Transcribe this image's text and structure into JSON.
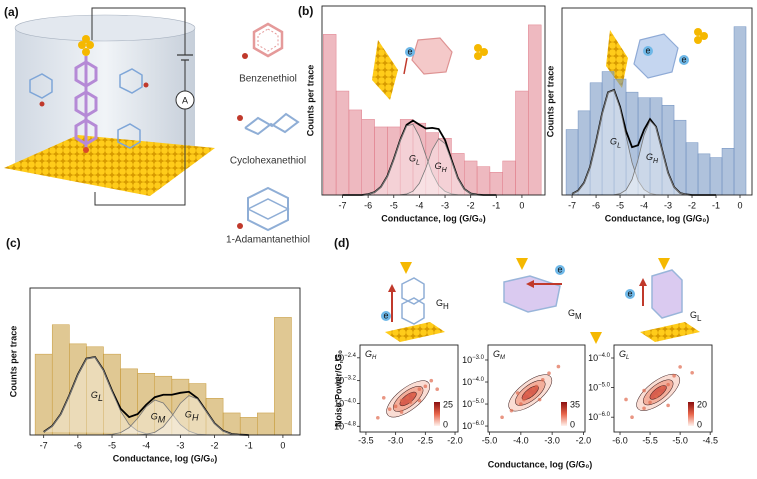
{
  "figure": {
    "panel_labels": [
      "(a)",
      "(b)",
      "(c)",
      "(d)"
    ],
    "ammeter": "A",
    "molecules": [
      "Benzenethiol",
      "Cyclohexanethiol",
      "1-Adamantanethiol"
    ],
    "d_states": [
      {
        "text": "G",
        "sub": "H"
      },
      {
        "text": "G",
        "sub": "M"
      },
      {
        "text": "G",
        "sub": "L"
      }
    ],
    "electron": "e"
  },
  "chart_data": [
    {
      "type": "histogram",
      "xlabel": "Conductance, log (G/G₀)",
      "ylabel": "Counts per trace",
      "xlim": [
        -7.8,
        0.9
      ],
      "xticks": [
        -7,
        -6,
        -5,
        -4,
        -3,
        -2,
        -1,
        0
      ],
      "ylim": [
        0,
        1
      ],
      "color": "#e07f8c",
      "bins": [
        -7.75,
        -7.25,
        -6.75,
        -6.25,
        -5.75,
        -5.25,
        -4.75,
        -4.25,
        -3.75,
        -3.25,
        -2.75,
        -2.25,
        -1.75,
        -1.25,
        -0.75,
        -0.25,
        0.25,
        0.75
      ],
      "values": [
        0.85,
        0.55,
        0.45,
        0.4,
        0.36,
        0.36,
        0.4,
        0.38,
        0.33,
        0.3,
        0.22,
        0.18,
        0.15,
        0.12,
        0.18,
        0.55,
        0.9
      ],
      "fit_x": [
        -7,
        -6.75,
        -6.5,
        -6.25,
        -6,
        -5.75,
        -5.5,
        -5.25,
        -5,
        -4.75,
        -4.5,
        -4.25,
        -4,
        -3.75,
        -3.5,
        -3.25,
        -3,
        -2.75,
        -2.5,
        -2.25,
        -2,
        -1.75,
        -1.5,
        -1.25,
        -1
      ],
      "fits": [
        {
          "color": "#000000",
          "values": [
            0,
            0,
            0,
            0,
            0.004,
            0.015,
            0.043,
            0.1,
            0.19,
            0.291,
            0.371,
            0.394,
            0.372,
            0.352,
            0.355,
            0.349,
            0.291,
            0.188,
            0.09,
            0.032,
            0.008,
            0.002,
            0,
            0,
            0
          ]
        },
        {
          "color": "#777777",
          "label": "G",
          "sub": "L",
          "values": [
            0,
            0,
            0,
            0,
            0.004,
            0.015,
            0.043,
            0.1,
            0.19,
            0.29,
            0.366,
            0.374,
            0.31,
            0.21,
            0.115,
            0.051,
            0.019,
            0.006,
            0.001,
            0,
            0,
            0,
            0,
            0,
            0
          ]
        },
        {
          "color": "#777777",
          "label": "G",
          "sub": "H",
          "values": [
            0,
            0,
            0,
            0,
            0,
            0,
            0,
            0,
            0,
            0.001,
            0.005,
            0.02,
            0.062,
            0.142,
            0.24,
            0.298,
            0.272,
            0.182,
            0.089,
            0.032,
            0.008,
            0.002,
            0,
            0,
            0
          ]
        }
      ]
    },
    {
      "type": "histogram",
      "xlabel": "Conductance, log (G/G₀)",
      "ylabel": "Counts per trace",
      "xlim": [
        -7.42,
        0.5
      ],
      "xticks": [
        -7,
        -6,
        -5,
        -4,
        -3,
        -2,
        -1,
        0
      ],
      "ylim": [
        0,
        1
      ],
      "color": "#6e8fbf",
      "bins": [
        -7.25,
        -6.75,
        -6.25,
        -5.75,
        -5.25,
        -4.75,
        -4.25,
        -3.75,
        -3.25,
        -2.75,
        -2.25,
        -1.75,
        -1.25,
        -0.75,
        -0.25,
        0.25
      ],
      "values": [
        0.35,
        0.45,
        0.6,
        0.66,
        0.62,
        0.55,
        0.52,
        0.52,
        0.48,
        0.4,
        0.28,
        0.22,
        0.2,
        0.25,
        0.9
      ],
      "fit_x": [
        -7,
        -6.75,
        -6.5,
        -6.25,
        -6,
        -5.75,
        -5.5,
        -5.25,
        -5,
        -4.75,
        -4.5,
        -4.25,
        -4,
        -3.75,
        -3.5,
        -3.25,
        -3,
        -2.75,
        -2.5,
        -2.25,
        -2,
        -1.75,
        -1.5,
        -1.25,
        -1
      ],
      "fits": [
        {
          "color": "#000000",
          "values": [
            0.006,
            0.023,
            0.065,
            0.15,
            0.285,
            0.435,
            0.549,
            0.562,
            0.472,
            0.342,
            0.256,
            0.266,
            0.349,
            0.406,
            0.365,
            0.243,
            0.119,
            0.043,
            0.011,
            0.003,
            0,
            0,
            0,
            0,
            0
          ]
        },
        {
          "color": "#777777",
          "label": "G",
          "sub": "L",
          "values": [
            0.006,
            0.023,
            0.065,
            0.15,
            0.285,
            0.435,
            0.549,
            0.561,
            0.465,
            0.315,
            0.173,
            0.077,
            0.029,
            0.009,
            0.002,
            0,
            0,
            0,
            0,
            0,
            0,
            0,
            0,
            0,
            0
          ]
        },
        {
          "color": "#777777",
          "label": "G",
          "sub": "H",
          "values": [
            0,
            0,
            0,
            0,
            0,
            0,
            0,
            0.001,
            0.007,
            0.027,
            0.083,
            0.189,
            0.32,
            0.397,
            0.363,
            0.243,
            0.119,
            0.043,
            0.011,
            0.003,
            0,
            0,
            0,
            0,
            0
          ]
        }
      ]
    },
    {
      "type": "histogram",
      "xlabel": "Conductance, log (G/G₀)",
      "ylabel": "Counts per trace",
      "xlim": [
        -7.4,
        0.5
      ],
      "xticks": [
        -7,
        -6,
        -5,
        -4,
        -3,
        -2,
        -1,
        0
      ],
      "ylim": [
        0,
        1
      ],
      "color": "#c79a3a",
      "bins": [
        -7.25,
        -6.75,
        -6.25,
        -5.75,
        -5.25,
        -4.75,
        -4.25,
        -3.75,
        -3.25,
        -2.75,
        -2.25,
        -1.75,
        -1.25,
        -0.75,
        -0.25,
        0.25
      ],
      "values": [
        0.55,
        0.75,
        0.62,
        0.6,
        0.55,
        0.45,
        0.42,
        0.4,
        0.38,
        0.35,
        0.25,
        0.15,
        0.12,
        0.15,
        0.8
      ],
      "fit_x": [
        -7,
        -6.75,
        -6.5,
        -6.25,
        -6,
        -5.75,
        -5.5,
        -5.25,
        -5,
        -4.75,
        -4.5,
        -4.25,
        -4,
        -3.75,
        -3.5,
        -3.25,
        -3,
        -2.75,
        -2.5,
        -2.25,
        -2,
        -1.75,
        -1.5,
        -1.25,
        -1
      ],
      "fits": [
        {
          "color": "#000000",
          "values": [
            0.021,
            0.061,
            0.142,
            0.27,
            0.412,
            0.52,
            0.531,
            0.442,
            0.302,
            0.179,
            0.122,
            0.142,
            0.206,
            0.257,
            0.274,
            0.274,
            0.287,
            0.294,
            0.251,
            0.166,
            0.08,
            0.029,
            0.007,
            0.002,
            0
          ]
        },
        {
          "color": "#777777",
          "label": "G",
          "sub": "L",
          "values": [
            0.021,
            0.061,
            0.142,
            0.27,
            0.412,
            0.52,
            0.531,
            0.441,
            0.298,
            0.163,
            0.072,
            0.027,
            0.009,
            0.001,
            0,
            0,
            0,
            0,
            0,
            0,
            0,
            0,
            0,
            0,
            0
          ]
        },
        {
          "color": "#777777",
          "label": "G",
          "sub": "M",
          "values": [
            0,
            0,
            0,
            0,
            0,
            0,
            0,
            0.001,
            0.004,
            0.016,
            0.05,
            0.114,
            0.192,
            0.238,
            0.218,
            0.146,
            0.071,
            0.026,
            0.006,
            0.002,
            0,
            0,
            0,
            0,
            0
          ]
        },
        {
          "color": "#777777",
          "label": "G",
          "sub": "H",
          "values": [
            0,
            0,
            0,
            0,
            0,
            0,
            0,
            0,
            0,
            0,
            0,
            0.001,
            0.005,
            0.018,
            0.056,
            0.128,
            0.216,
            0.268,
            0.245,
            0.164,
            0.08,
            0.029,
            0.007,
            0.002,
            0
          ]
        }
      ]
    },
    {
      "type": "scatter",
      "label": "G",
      "label_sub": "H",
      "ylabel": "Noise Power/G,G₀",
      "xlim": [
        -3.6,
        -1.95
      ],
      "xticks": [
        -3.5,
        {
          "value": -3,
          "label": "-3.0"
        },
        -2.5,
        {
          "value": -2,
          "label": "-2.0"
        }
      ],
      "yscale": "log",
      "ylim": [
        1e-05,
        0.0112
      ],
      "yticks": [
        {
          "value": 0.00398,
          "label": "10",
          "exp": "−2.4"
        },
        {
          "value": 0.000631,
          "label": "10",
          "exp": "−3.2"
        },
        {
          "value": 0.0001,
          "label": "10",
          "exp": "−4.0"
        },
        {
          "value": 1.585e-05,
          "label": "10",
          "exp": "−4.8"
        }
      ],
      "x": [
        -3.3,
        -3.1,
        -3,
        -2.9,
        -2.8,
        -2.75,
        -2.7,
        -2.6,
        -2.5,
        -2.4,
        -2.9,
        -2.6,
        -3.2,
        -2.3
      ],
      "y": [
        3.16e-05,
        6.31e-05,
        7.94e-05,
        0.000126,
        0.000158,
        0.000112,
        0.0002,
        0.000316,
        0.000398,
        0.000631,
        5.01e-05,
        0.000126,
        0.000158,
        0.000316
      ],
      "color": "#e0694f",
      "clim": [
        0,
        25
      ]
    },
    {
      "type": "scatter",
      "label": "G",
      "label_sub": "M",
      "xlabel": "Conductance, log (G/G₀)",
      "xlim": [
        -5.05,
        -1.95
      ],
      "xticks": [
        {
          "value": -5,
          "label": "-5.0"
        },
        {
          "value": -4,
          "label": "-4.0"
        },
        {
          "value": -3,
          "label": "-3.0"
        },
        {
          "value": -2,
          "label": "-2.0"
        }
      ],
      "yscale": "log",
      "ylim": [
        5.37e-07,
        0.00479
      ],
      "yticks": [
        {
          "value": 0.001,
          "label": "10",
          "exp": "−3.0"
        },
        {
          "value": 0.0001,
          "label": "10",
          "exp": "−4.0"
        },
        {
          "value": 1e-05,
          "label": "10",
          "exp": "−5.0"
        },
        {
          "value": 1e-06,
          "label": "10",
          "exp": "−6.0"
        }
      ],
      "x": [
        -4.3,
        -4,
        -3.9,
        -3.8,
        -3.7,
        -3.6,
        -3.5,
        -3.3,
        -3.1,
        -4.1,
        -3.4,
        -2.8,
        -4.6
      ],
      "y": [
        5.01e-06,
        1e-05,
        1.58e-05,
        3.16e-05,
        2.51e-05,
        5.01e-05,
        6.31e-05,
        0.000126,
        0.000251,
        3.16e-05,
        1.58e-05,
        0.000501,
        2.51e-06
      ],
      "color": "#e0694f",
      "clim": [
        0,
        35
      ]
    },
    {
      "type": "scatter",
      "label": "G",
      "label_sub": "L",
      "xlim": [
        -6.1,
        -4.47
      ],
      "xticks": [
        {
          "value": -6,
          "label": "-6.0"
        },
        -5.5,
        {
          "value": -5,
          "label": "-5.0"
        },
        -4.5
      ],
      "yscale": "log",
      "ylim": [
        3.16e-07,
        0.000275
      ],
      "yticks": [
        {
          "value": 0.0001,
          "label": "10",
          "exp": "−4.0"
        },
        {
          "value": 1e-05,
          "label": "10",
          "exp": "−5.0"
        },
        {
          "value": 1e-06,
          "label": "10",
          "exp": "−6.0"
        }
      ],
      "x": [
        -5.8,
        -5.6,
        -5.5,
        -5.4,
        -5.35,
        -5.3,
        -5.2,
        -5.1,
        -5,
        -5.6,
        -5.2,
        -4.8,
        -5.9
      ],
      "y": [
        1e-06,
        2e-06,
        3.16e-06,
        5.01e-06,
        6.31e-06,
        1e-05,
        1.26e-05,
        2.51e-05,
        5.01e-05,
        7.94e-06,
        2.51e-06,
        3.16e-05,
        3.98e-06
      ],
      "color": "#e0694f",
      "clim": [
        0,
        20
      ]
    }
  ]
}
